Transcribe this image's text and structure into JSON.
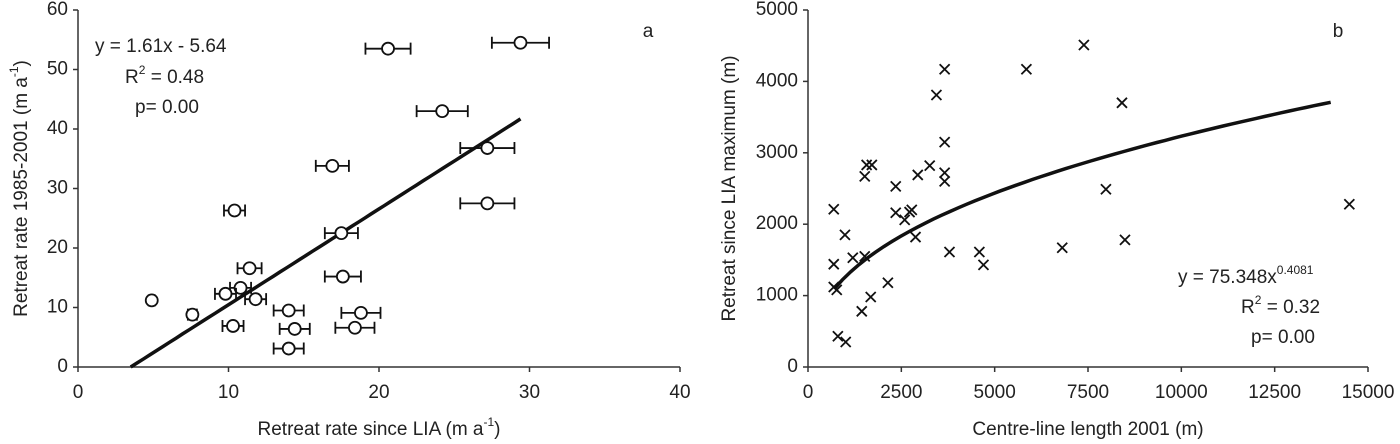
{
  "chart_data": [
    {
      "type": "scatter",
      "marker": "circle",
      "color": "#111",
      "panel_label": "a",
      "x_label": [
        {
          "text": "Retreat rate since LIA (m a"
        },
        {
          "sup": "-1"
        },
        {
          "text": ")"
        }
      ],
      "y_label": [
        {
          "text": "Retreat rate 1985-2001 (m a"
        },
        {
          "sup": "-1"
        },
        {
          "text": ")"
        }
      ],
      "annotation": [
        [
          {
            "text": "y = 1.61x - 5.64"
          }
        ],
        [
          {
            "text": "R"
          },
          {
            "sup": "2"
          },
          {
            "text": " = 0.48"
          }
        ],
        [
          {
            "text": "p= 0.00"
          }
        ]
      ],
      "x": [
        29.4,
        20.6,
        24.2,
        27.2,
        16.9,
        27.2,
        10.4,
        17.5,
        11.4,
        17.6,
        4.9,
        10.8,
        9.8,
        11.8,
        7.6,
        14.0,
        18.8,
        10.3,
        14.4,
        18.4,
        14.0
      ],
      "xerr": [
        1.9,
        1.5,
        1.7,
        1.8,
        1.1,
        1.8,
        0.7,
        1.1,
        0.8,
        1.2,
        0.2,
        0.7,
        0.7,
        0.7,
        0.3,
        1.0,
        1.3,
        0.7,
        1.0,
        1.3,
        1.0
      ],
      "values": [
        54.5,
        53.5,
        43.0,
        36.8,
        33.8,
        27.5,
        26.3,
        22.5,
        16.6,
        15.2,
        11.2,
        13.3,
        12.3,
        11.4,
        8.8,
        9.5,
        9.1,
        6.9,
        6.4,
        6.6,
        3.1
      ],
      "fit": {
        "type": "linear",
        "slope": 1.61,
        "intercept": -5.64,
        "x": [
          3.5,
          29.4
        ]
      },
      "xlim": [
        0,
        40
      ],
      "xticks": [
        0,
        10,
        20,
        30,
        40
      ],
      "ylim": [
        0,
        60
      ],
      "yticks": [
        0,
        10,
        20,
        30,
        40,
        50,
        60
      ]
    },
    {
      "type": "scatter",
      "marker": "x",
      "color": "#111",
      "panel_label": "b",
      "x_label": [
        {
          "text": "Centre-line length 2001 (m)"
        }
      ],
      "y_label": [
        {
          "text": "Retreat since LIA maximum (m)"
        }
      ],
      "annotation": [
        [
          {
            "text": "y = 75.348x"
          },
          {
            "sup": "0.4081"
          }
        ],
        [
          {
            "text": "R"
          },
          {
            "sup": "2"
          },
          {
            "text": " = 0.32"
          }
        ],
        [
          {
            "text": "p= 0.00"
          }
        ]
      ],
      "x": [
        7390,
        3660,
        5850,
        3440,
        8410,
        3660,
        1570,
        1710,
        1520,
        3660,
        3660,
        2940,
        3260,
        7980,
        2350,
        2350,
        2720,
        2780,
        690,
        14500,
        2590,
        2880,
        990,
        8490,
        4590,
        6810,
        3790,
        4700,
        690,
        1200,
        1520,
        2140,
        690,
        770,
        1680,
        1440,
        800,
        1010
      ],
      "values": [
        4510,
        4170,
        4170,
        3810,
        3700,
        3150,
        2830,
        2830,
        2670,
        2720,
        2600,
        2690,
        2820,
        2490,
        2530,
        2160,
        2170,
        2200,
        2210,
        2280,
        2060,
        1820,
        1850,
        1780,
        1610,
        1670,
        1610,
        1430,
        1440,
        1530,
        1550,
        1180,
        1120,
        1080,
        980,
        780,
        430,
        350
      ],
      "fit": {
        "type": "power",
        "coefficient": 75.348,
        "exponent": 0.4081,
        "x": [
          700,
          14000
        ]
      },
      "xlim": [
        0,
        15000
      ],
      "xticks": [
        0,
        2500,
        5000,
        7500,
        10000,
        12500,
        15000
      ],
      "ylim": [
        0,
        5000
      ],
      "yticks": [
        0,
        1000,
        2000,
        3000,
        4000,
        5000
      ]
    }
  ]
}
